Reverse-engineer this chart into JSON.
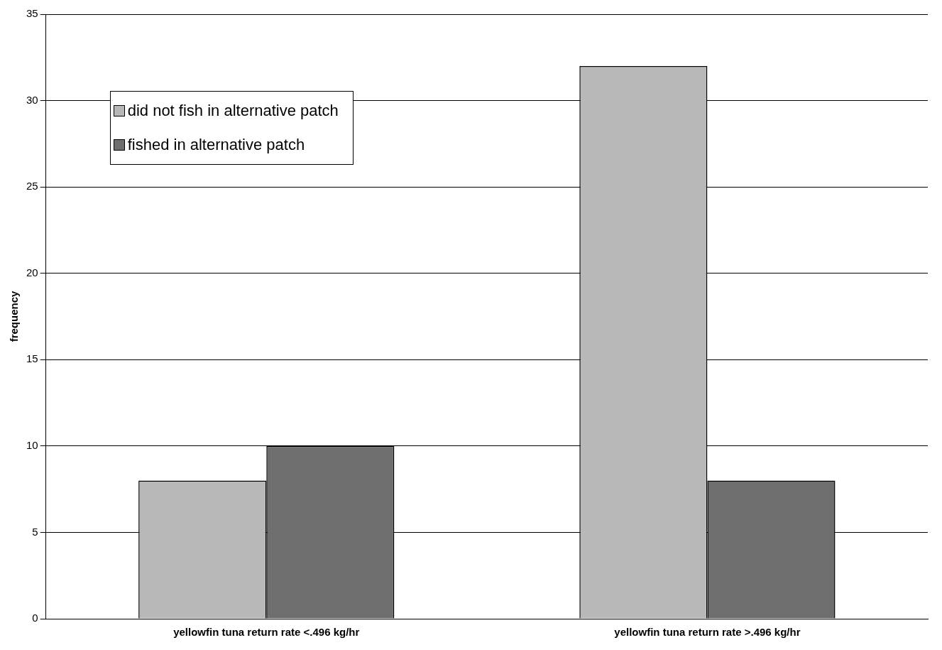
{
  "chart_data": {
    "type": "bar",
    "ylabel": "frequency",
    "categories": [
      "yellowfin tuna return rate <.496 kg/hr",
      "yellowfin tuna return rate >.496 kg/hr"
    ],
    "series": [
      {
        "name": "did not fish in alternative patch",
        "color": "#b8b8b8",
        "values": [
          8,
          32
        ]
      },
      {
        "name": "fished in alternative patch",
        "color": "#6e6e6e",
        "values": [
          10,
          8
        ]
      }
    ],
    "ylim": [
      0,
      35
    ],
    "yticks": [
      0,
      5,
      10,
      15,
      20,
      25,
      30,
      35
    ],
    "grid": "y",
    "legend": "top left"
  }
}
